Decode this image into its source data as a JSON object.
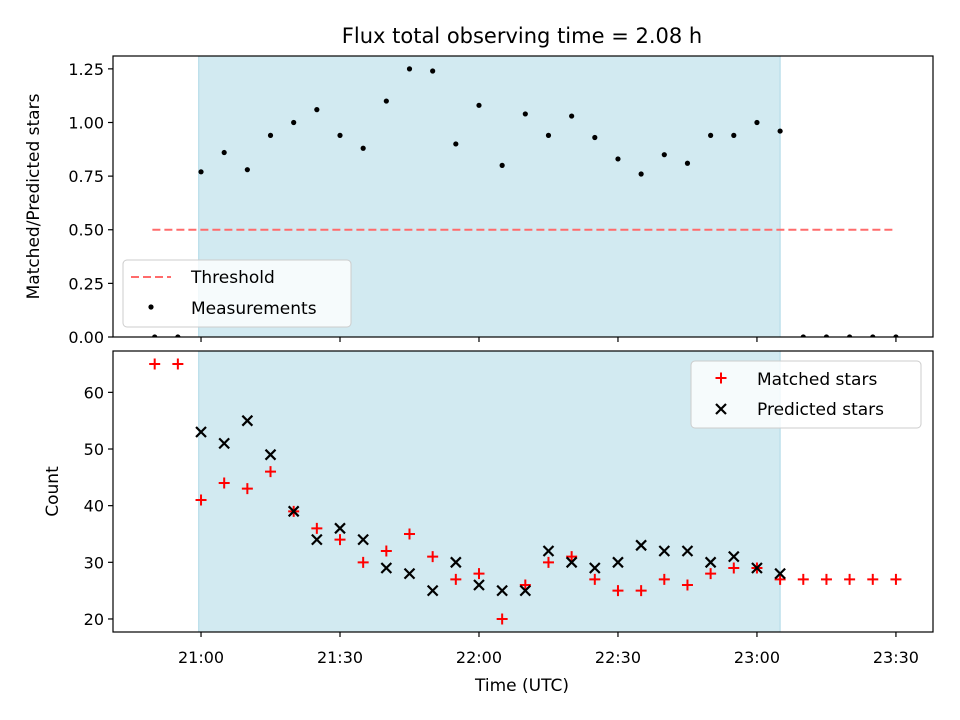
{
  "title": "Flux total observing time = 2.08 h",
  "xlabel": "Time (UTC)",
  "x_ticks": [
    {
      "value": 0,
      "label": "21:00"
    },
    {
      "value": 30,
      "label": "21:30"
    },
    {
      "value": 60,
      "label": "22:00"
    },
    {
      "value": 90,
      "label": "22:30"
    },
    {
      "value": 120,
      "label": "23:00"
    },
    {
      "value": 150,
      "label": "23:30"
    }
  ],
  "x_axis_note": "x values are minutes relative to 21:00 UTC",
  "colors": {
    "shade": "#add8e6",
    "threshold": "#ff6b6b",
    "measurements": "#000000",
    "matched": "#ff0000",
    "predicted": "#000000"
  },
  "chart_data": [
    {
      "type": "scatter",
      "id": "ratio",
      "ylabel": "Matched/Predicted stars",
      "xlim": [
        -19,
        158
      ],
      "ylim": [
        0,
        1.31
      ],
      "y_ticks": [
        0,
        0.25,
        0.5,
        0.75,
        1.0,
        1.25
      ],
      "y_tick_labels": [
        "0.00",
        "0.25",
        "0.50",
        "0.75",
        "1.00",
        "1.25"
      ],
      "shaded_span": [
        -0.5,
        125
      ],
      "threshold": {
        "name": "Threshold",
        "value": 0.5,
        "x_range": [
          -10.5,
          149.5
        ]
      },
      "legend": {
        "position": "lower left",
        "entries": [
          "Threshold",
          "Measurements"
        ]
      },
      "series": [
        {
          "name": "Measurements",
          "marker": "dot",
          "x": [
            -10,
            -5,
            0,
            5,
            10,
            15,
            20,
            25,
            30,
            35,
            40,
            45,
            50,
            55,
            60,
            65,
            70,
            75,
            80,
            85,
            90,
            95,
            100,
            105,
            110,
            115,
            120,
            125,
            130,
            135,
            140,
            145,
            150
          ],
          "y": [
            0,
            0,
            0.77,
            0.86,
            0.78,
            0.94,
            1.0,
            1.06,
            0.94,
            0.88,
            1.1,
            1.25,
            1.24,
            0.9,
            1.08,
            0.8,
            1.04,
            0.94,
            1.03,
            0.93,
            0.83,
            0.76,
            0.85,
            0.81,
            0.94,
            0.94,
            1.0,
            0.96,
            0,
            0,
            0,
            0,
            0
          ]
        }
      ]
    },
    {
      "type": "scatter",
      "id": "counts",
      "ylabel": "Count",
      "xlim": [
        -19,
        158
      ],
      "ylim": [
        17.7,
        67.3
      ],
      "y_ticks": [
        20,
        30,
        40,
        50,
        60
      ],
      "y_tick_labels": [
        "20",
        "30",
        "40",
        "50",
        "60"
      ],
      "shaded_span": [
        -0.5,
        125
      ],
      "legend": {
        "position": "upper right",
        "entries": [
          "Matched stars",
          "Predicted stars"
        ]
      },
      "series": [
        {
          "name": "Matched stars",
          "marker": "plus",
          "x": [
            -10,
            -5,
            0,
            5,
            10,
            15,
            20,
            25,
            30,
            35,
            40,
            45,
            50,
            55,
            60,
            65,
            70,
            75,
            80,
            85,
            90,
            95,
            100,
            105,
            110,
            115,
            120,
            125,
            130,
            135,
            140,
            145,
            150
          ],
          "y": [
            65,
            65,
            41,
            44,
            43,
            46,
            39,
            36,
            34,
            30,
            32,
            35,
            31,
            27,
            28,
            20,
            26,
            30,
            31,
            27,
            25,
            25,
            27,
            26,
            28,
            29,
            29,
            27,
            27,
            27,
            27,
            27,
            27
          ]
        },
        {
          "name": "Predicted stars",
          "marker": "x",
          "x": [
            0,
            5,
            10,
            15,
            20,
            25,
            30,
            35,
            40,
            45,
            50,
            55,
            60,
            65,
            70,
            75,
            80,
            85,
            90,
            95,
            100,
            105,
            110,
            115,
            120,
            125
          ],
          "y": [
            53,
            51,
            55,
            49,
            39,
            34,
            36,
            34,
            29,
            28,
            25,
            30,
            26,
            25,
            25,
            32,
            30,
            29,
            30,
            33,
            32,
            32,
            30,
            31,
            29,
            28
          ]
        }
      ]
    }
  ]
}
